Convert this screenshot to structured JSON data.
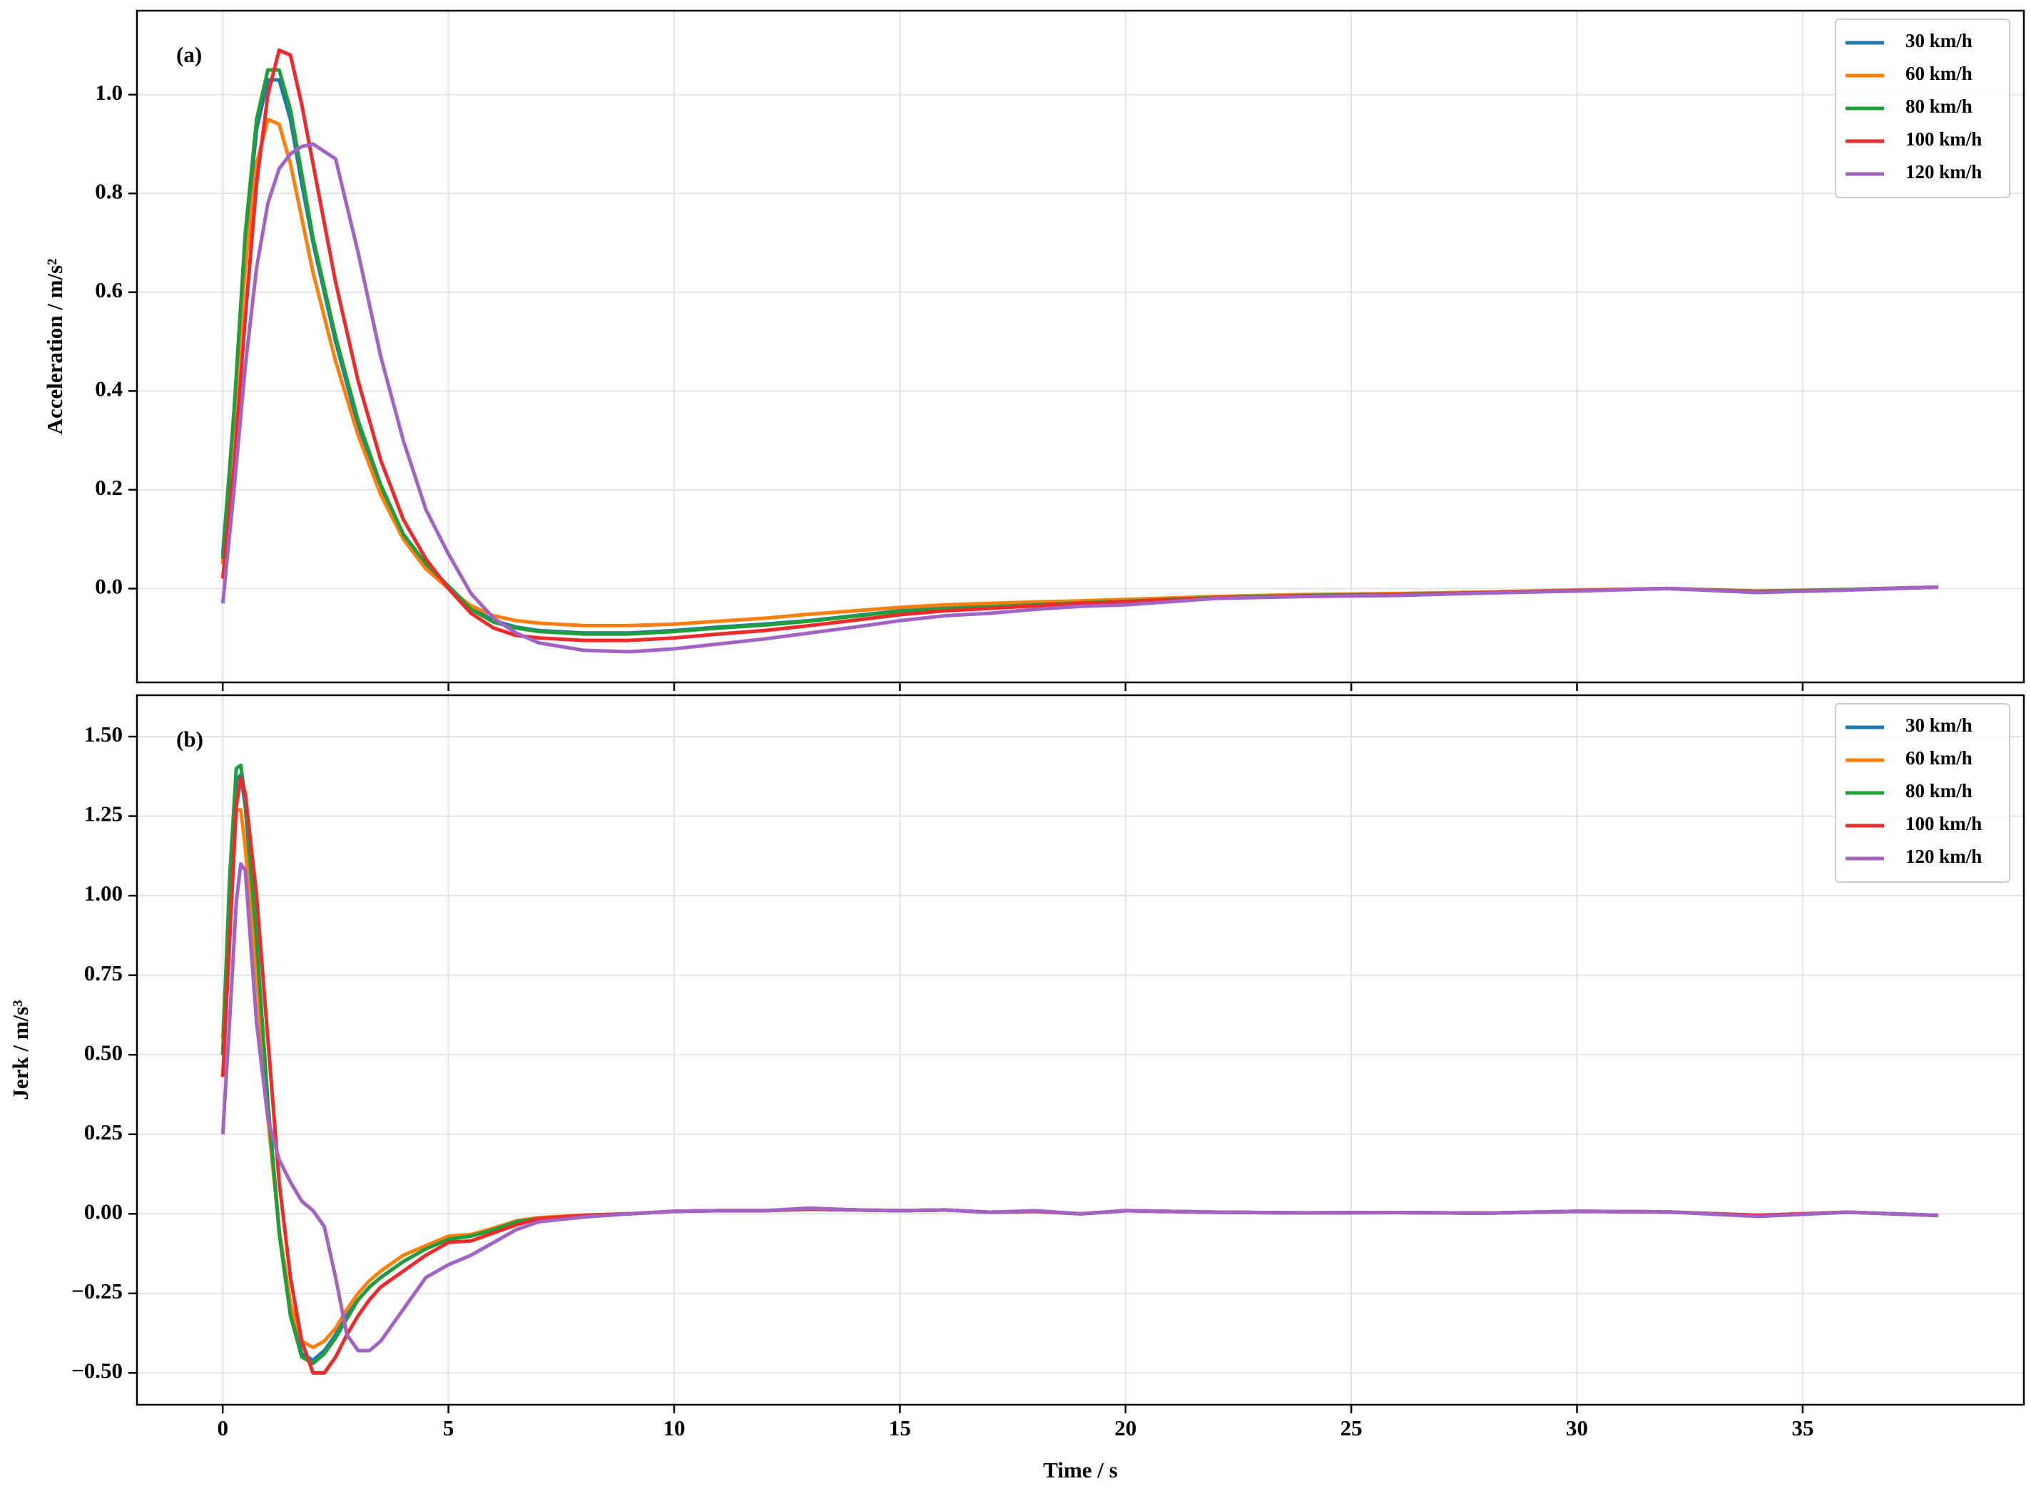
{
  "chart_data": [
    {
      "type": "line",
      "annotation": "(a)",
      "y_label": "Acceleration / m/s²",
      "x": [
        0,
        0.25,
        0.5,
        0.75,
        1,
        1.25,
        1.5,
        1.75,
        2,
        2.5,
        3,
        3.5,
        4,
        4.5,
        5,
        5.5,
        6,
        6.5,
        7,
        8,
        9,
        10,
        11,
        12,
        13,
        14,
        15,
        16,
        17,
        18,
        19,
        20,
        22,
        24,
        26,
        28,
        30,
        32,
        34,
        36,
        38
      ],
      "series": [
        {
          "name": "30 km/h",
          "color": "#1f77b4",
          "values": [
            0.07,
            0.35,
            0.7,
            0.93,
            1.03,
            1.03,
            0.95,
            0.82,
            0.7,
            0.5,
            0.33,
            0.2,
            0.11,
            0.05,
            0.005,
            -0.04,
            -0.065,
            -0.078,
            -0.085,
            -0.09,
            -0.09,
            -0.085,
            -0.078,
            -0.072,
            -0.065,
            -0.055,
            -0.045,
            -0.04,
            -0.036,
            -0.032,
            -0.028,
            -0.025,
            -0.018,
            -0.014,
            -0.012,
            -0.008,
            -0.004,
            0,
            -0.006,
            -0.002,
            0.003
          ]
        },
        {
          "name": "60 km/h",
          "color": "#ff7f0e",
          "values": [
            0.05,
            0.35,
            0.65,
            0.86,
            0.95,
            0.94,
            0.86,
            0.75,
            0.64,
            0.46,
            0.31,
            0.19,
            0.1,
            0.04,
            0.0,
            -0.035,
            -0.055,
            -0.065,
            -0.07,
            -0.075,
            -0.075,
            -0.072,
            -0.066,
            -0.06,
            -0.052,
            -0.045,
            -0.038,
            -0.033,
            -0.03,
            -0.027,
            -0.025,
            -0.022,
            -0.016,
            -0.012,
            -0.01,
            -0.007,
            -0.003,
            0,
            -0.005,
            -0.002,
            0.003
          ]
        },
        {
          "name": "80 km/h",
          "color": "#1f9e3a",
          "values": [
            0.06,
            0.36,
            0.72,
            0.95,
            1.05,
            1.05,
            0.97,
            0.84,
            0.71,
            0.51,
            0.34,
            0.21,
            0.11,
            0.05,
            0.005,
            -0.042,
            -0.068,
            -0.08,
            -0.087,
            -0.092,
            -0.092,
            -0.087,
            -0.08,
            -0.074,
            -0.066,
            -0.056,
            -0.046,
            -0.041,
            -0.037,
            -0.033,
            -0.029,
            -0.026,
            -0.018,
            -0.014,
            -0.012,
            -0.008,
            -0.004,
            0,
            -0.006,
            -0.002,
            0.003
          ]
        },
        {
          "name": "100 km/h",
          "color": "#ee2a2a",
          "values": [
            0.02,
            0.25,
            0.55,
            0.82,
            1.0,
            1.09,
            1.08,
            0.98,
            0.86,
            0.62,
            0.42,
            0.26,
            0.14,
            0.06,
            0.0,
            -0.05,
            -0.08,
            -0.095,
            -0.1,
            -0.105,
            -0.105,
            -0.1,
            -0.092,
            -0.085,
            -0.075,
            -0.064,
            -0.053,
            -0.045,
            -0.04,
            -0.035,
            -0.03,
            -0.027,
            -0.019,
            -0.015,
            -0.013,
            -0.008,
            -0.004,
            0,
            -0.007,
            -0.003,
            0.003
          ]
        },
        {
          "name": "120 km/h",
          "color": "#a263c4",
          "values": [
            -0.03,
            0.2,
            0.45,
            0.65,
            0.78,
            0.85,
            0.88,
            0.895,
            0.9,
            0.87,
            0.68,
            0.47,
            0.3,
            0.16,
            0.07,
            -0.01,
            -0.06,
            -0.09,
            -0.11,
            -0.125,
            -0.128,
            -0.122,
            -0.112,
            -0.102,
            -0.09,
            -0.078,
            -0.065,
            -0.055,
            -0.05,
            -0.042,
            -0.036,
            -0.033,
            -0.02,
            -0.016,
            -0.014,
            -0.009,
            -0.005,
            0,
            -0.008,
            -0.003,
            0.003
          ]
        }
      ],
      "xlim": [
        -1.9,
        39.9
      ],
      "xticks": [
        0,
        5,
        10,
        15,
        20,
        25,
        30,
        35
      ],
      "ylim": [
        -0.19,
        1.17
      ],
      "yticks": [
        {
          "value": 0,
          "label": "0.0"
        },
        0.2,
        0.4,
        0.6,
        0.8,
        {
          "value": 1,
          "label": "1.0"
        }
      ],
      "grid": true,
      "legend": "upper right"
    },
    {
      "type": "line",
      "annotation": "(b)",
      "y_label": "Jerk / m/s³",
      "x_label": "Time / s",
      "x": [
        0,
        0.15,
        0.3,
        0.4,
        0.5,
        0.75,
        1,
        1.25,
        1.5,
        1.75,
        2,
        2.25,
        2.5,
        2.75,
        3,
        3.25,
        3.5,
        4,
        4.5,
        5,
        5.5,
        6,
        6.5,
        7,
        8,
        9,
        10,
        11,
        12,
        13,
        14,
        15,
        16,
        17,
        18,
        19,
        20,
        22,
        24,
        26,
        28,
        30,
        32,
        34,
        36,
        38
      ],
      "series": [
        {
          "name": "30 km/h",
          "color": "#1f77b4",
          "values": [
            0.5,
            1.0,
            1.36,
            1.38,
            1.28,
            0.85,
            0.35,
            -0.05,
            -0.3,
            -0.44,
            -0.46,
            -0.43,
            -0.38,
            -0.32,
            -0.27,
            -0.23,
            -0.2,
            -0.15,
            -0.11,
            -0.08,
            -0.07,
            -0.05,
            -0.025,
            -0.015,
            -0.005,
            0.0,
            0.008,
            0.01,
            0.01,
            0.015,
            0.012,
            0.01,
            0.012,
            0.005,
            0.008,
            0.0,
            0.01,
            0.005,
            0.003,
            0.004,
            0.002,
            0.008,
            0.006,
            -0.005,
            0.005,
            -0.005
          ]
        },
        {
          "name": "60 km/h",
          "color": "#ff7f0e",
          "values": [
            0.55,
            1.0,
            1.27,
            1.27,
            1.15,
            0.75,
            0.3,
            -0.05,
            -0.28,
            -0.4,
            -0.42,
            -0.4,
            -0.36,
            -0.3,
            -0.25,
            -0.21,
            -0.18,
            -0.13,
            -0.1,
            -0.07,
            -0.065,
            -0.045,
            -0.022,
            -0.012,
            -0.004,
            0.0,
            0.008,
            0.01,
            0.01,
            0.015,
            0.012,
            0.01,
            0.012,
            0.005,
            0.008,
            0.0,
            0.01,
            0.005,
            0.003,
            0.004,
            0.002,
            0.008,
            0.006,
            -0.005,
            0.005,
            -0.005
          ]
        },
        {
          "name": "80 km/h",
          "color": "#1f9e3a",
          "values": [
            0.5,
            1.05,
            1.4,
            1.41,
            1.3,
            0.86,
            0.35,
            -0.06,
            -0.32,
            -0.45,
            -0.47,
            -0.44,
            -0.39,
            -0.33,
            -0.27,
            -0.23,
            -0.2,
            -0.15,
            -0.11,
            -0.08,
            -0.07,
            -0.05,
            -0.025,
            -0.015,
            -0.005,
            0.0,
            0.008,
            0.01,
            0.01,
            0.015,
            0.012,
            0.01,
            0.012,
            0.005,
            0.008,
            0.0,
            0.01,
            0.005,
            0.003,
            0.004,
            0.002,
            0.008,
            0.006,
            -0.005,
            0.005,
            -0.005
          ]
        },
        {
          "name": "100 km/h",
          "color": "#ee2a2a",
          "values": [
            0.43,
            0.85,
            1.28,
            1.37,
            1.32,
            1.0,
            0.55,
            0.1,
            -0.2,
            -0.4,
            -0.5,
            -0.5,
            -0.45,
            -0.38,
            -0.32,
            -0.27,
            -0.23,
            -0.18,
            -0.13,
            -0.09,
            -0.085,
            -0.06,
            -0.035,
            -0.015,
            -0.005,
            0.0,
            0.008,
            0.01,
            0.01,
            0.015,
            0.012,
            0.01,
            0.012,
            0.005,
            0.008,
            0.0,
            0.01,
            0.005,
            0.003,
            0.004,
            0.002,
            0.008,
            0.006,
            -0.005,
            0.005,
            -0.005
          ]
        },
        {
          "name": "120 km/h",
          "color": "#a263c4",
          "values": [
            0.25,
            0.6,
            0.98,
            1.1,
            1.08,
            0.6,
            0.3,
            0.17,
            0.1,
            0.04,
            0.01,
            -0.04,
            -0.2,
            -0.38,
            -0.43,
            -0.43,
            -0.4,
            -0.3,
            -0.2,
            -0.16,
            -0.13,
            -0.09,
            -0.05,
            -0.025,
            -0.01,
            0.0,
            0.008,
            0.01,
            0.01,
            0.018,
            0.012,
            0.01,
            0.012,
            0.005,
            0.01,
            0.0,
            0.01,
            0.005,
            0.003,
            0.004,
            0.002,
            0.008,
            0.006,
            -0.008,
            0.005,
            -0.005
          ]
        }
      ],
      "xlim": [
        -1.9,
        39.9
      ],
      "xticks": [
        0,
        5,
        10,
        15,
        20,
        25,
        30,
        35
      ],
      "ylim": [
        -0.6,
        1.63
      ],
      "yticks": [
        {
          "value": -0.5,
          "label": "−0.50"
        },
        {
          "value": -0.25,
          "label": "−0.25"
        },
        {
          "value": 0,
          "label": "0.00"
        },
        {
          "value": 0.25,
          "label": "0.25"
        },
        {
          "value": 0.5,
          "label": "0.50"
        },
        {
          "value": 0.75,
          "label": "0.75"
        },
        {
          "value": 1,
          "label": "1.00"
        },
        {
          "value": 1.25,
          "label": "1.25"
        },
        {
          "value": 1.5,
          "label": "1.50"
        }
      ],
      "grid": true,
      "legend": "upper right"
    }
  ]
}
